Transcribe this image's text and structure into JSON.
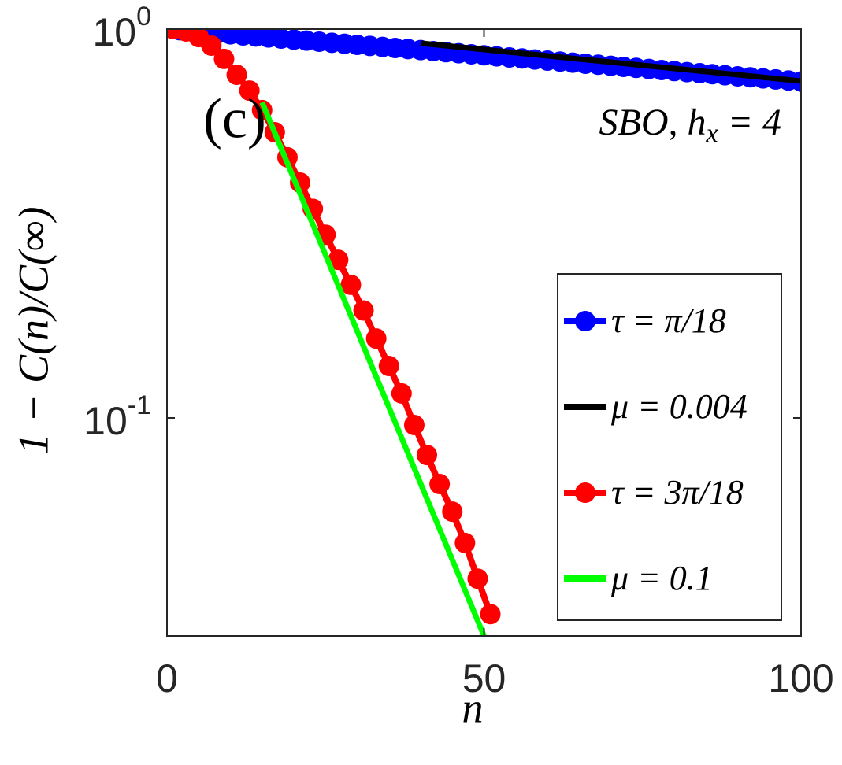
{
  "chart_data": {
    "type": "line",
    "xlabel": "n",
    "ylabel": "1 − C(n)/C(∞)",
    "xlim": [
      0,
      100
    ],
    "ylim": [
      0.0275,
      1
    ],
    "log_y": true,
    "xticks": [
      0,
      50,
      100
    ],
    "yticks": [
      {
        "value": 1,
        "label": "10",
        "exponent": "0"
      },
      {
        "value": 0.1,
        "label": "10",
        "exponent": "-1"
      }
    ],
    "panel_label": "(c)",
    "annotation": {
      "main": "SBO, h",
      "subscript": "x",
      "tail": " = 4"
    },
    "legend": "lower right",
    "series": [
      {
        "name": "τ = π/18",
        "color": "#0000ff",
        "markers": true,
        "x": [
          2,
          4,
          6,
          8,
          10,
          12,
          14,
          16,
          18,
          20,
          22,
          24,
          26,
          28,
          30,
          32,
          34,
          36,
          38,
          40,
          42,
          44,
          46,
          48,
          50,
          52,
          54,
          56,
          58,
          60,
          62,
          64,
          66,
          68,
          70,
          72,
          74,
          76,
          78,
          80,
          82,
          84,
          86,
          88,
          90,
          92,
          94,
          96,
          98,
          100
        ],
        "values": [
          0.9938,
          0.9876,
          0.9815,
          0.9754,
          0.9694,
          0.9634,
          0.9574,
          0.9515,
          0.9456,
          0.9397,
          0.9339,
          0.9281,
          0.9224,
          0.9167,
          0.911,
          0.9054,
          0.8998,
          0.8942,
          0.8887,
          0.8832,
          0.8777,
          0.8723,
          0.8669,
          0.8615,
          0.8562,
          0.8509,
          0.8456,
          0.8404,
          0.8352,
          0.83,
          0.8249,
          0.8198,
          0.8147,
          0.8097,
          0.8046,
          0.7997,
          0.7947,
          0.7898,
          0.7849,
          0.78,
          0.7752,
          0.7704,
          0.7657,
          0.7609,
          0.7562,
          0.7515,
          0.7469,
          0.7423,
          0.7377,
          0.7331
        ]
      },
      {
        "name": "μ = 0.004",
        "color": "#000000",
        "markers": false,
        "x": [
          40,
          100
        ],
        "values": [
          0.92,
          0.735
        ]
      },
      {
        "name": "τ = 3π/18",
        "color": "#ff0000",
        "markers": true,
        "x": [
          1,
          3,
          5,
          7,
          9,
          11,
          13,
          15,
          17,
          19,
          21,
          23,
          25,
          27,
          29,
          31,
          33,
          35,
          37,
          39,
          41,
          43,
          45,
          47,
          49,
          51
        ],
        "values": [
          1,
          0.986,
          0.954,
          0.907,
          0.838,
          0.763,
          0.695,
          0.619,
          0.543,
          0.468,
          0.403,
          0.345,
          0.296,
          0.255,
          0.22,
          0.189,
          0.16,
          0.136,
          0.1156,
          0.0959,
          0.0803,
          0.0676,
          0.0574,
          0.0477,
          0.0386,
          0.0313
        ]
      },
      {
        "name": "μ = 0.1",
        "color": "#00ff00",
        "markers": false,
        "x": [
          15,
          50
        ],
        "values": [
          0.648,
          0.0275
        ]
      }
    ]
  }
}
